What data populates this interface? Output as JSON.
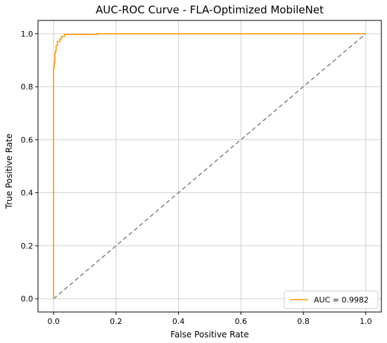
{
  "chart_data": {
    "type": "line",
    "title": "AUC-ROC Curve - FLA-Optimized MobileNet",
    "xlabel": "False Positive Rate",
    "ylabel": "True Positive Rate",
    "xlim": [
      -0.05,
      1.05
    ],
    "ylim": [
      -0.05,
      1.05
    ],
    "xticks": [
      "0.0",
      "0.2",
      "0.4",
      "0.6",
      "0.8",
      "1.0"
    ],
    "yticks": [
      "0.0",
      "0.2",
      "0.4",
      "0.6",
      "0.8",
      "1.0"
    ],
    "xtick_values": [
      0.0,
      0.2,
      0.4,
      0.6,
      0.8,
      1.0
    ],
    "ytick_values": [
      0.0,
      0.2,
      0.4,
      0.6,
      0.8,
      1.0
    ],
    "grid": true,
    "legend_position": "lower-right",
    "series": [
      {
        "name": "AUC = 0.9982",
        "color": "#ff9900",
        "style": "solid",
        "x": [
          0.0,
          0.0,
          0.002,
          0.002,
          0.004,
          0.004,
          0.006,
          0.006,
          0.008,
          0.008,
          0.012,
          0.012,
          0.02,
          0.02,
          0.025,
          0.025,
          0.035,
          0.035,
          0.14,
          0.14,
          1.0
        ],
        "y": [
          0.0,
          0.87,
          0.87,
          0.89,
          0.89,
          0.925,
          0.925,
          0.935,
          0.935,
          0.955,
          0.955,
          0.97,
          0.97,
          0.98,
          0.98,
          0.99,
          0.99,
          0.997,
          0.997,
          1.0,
          1.0
        ]
      },
      {
        "color": "#808080",
        "style": "dashed",
        "x": [
          0.0,
          1.0
        ],
        "y": [
          0.0,
          1.0
        ]
      }
    ]
  }
}
